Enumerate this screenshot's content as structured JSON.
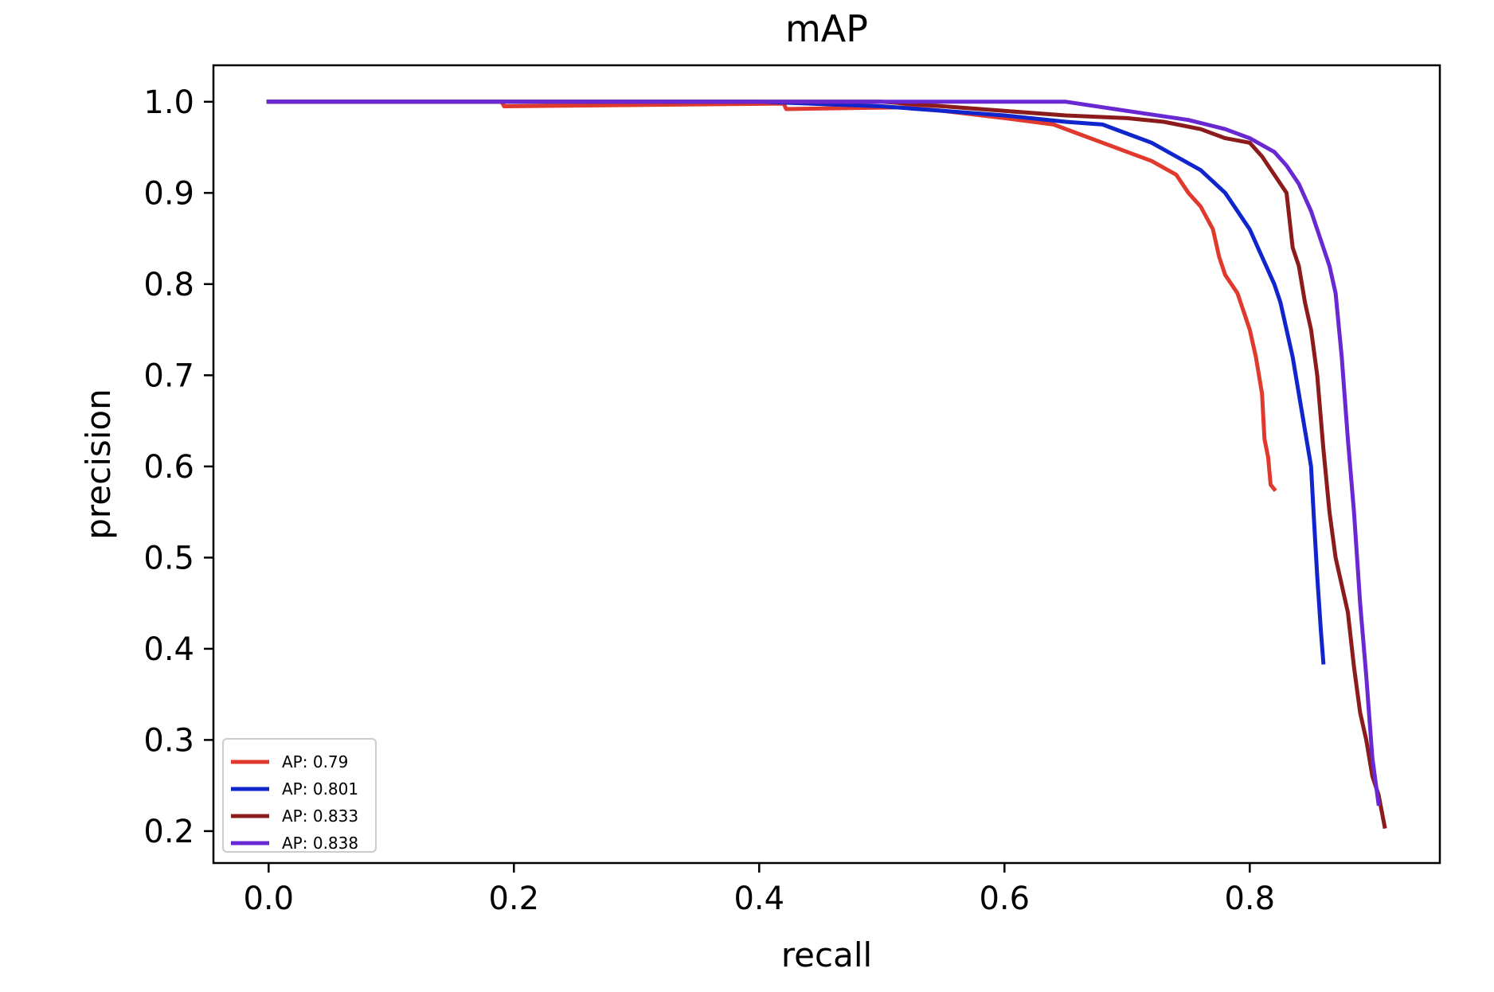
{
  "chart_data": {
    "type": "line",
    "title": "mAP",
    "xlabel": "recall",
    "ylabel": "precision",
    "xlim": [
      -0.045,
      0.955
    ],
    "ylim": [
      0.165,
      1.04
    ],
    "xticks": [
      0.0,
      0.2,
      0.4,
      0.6,
      0.8
    ],
    "xtick_labels": [
      "0.0",
      "0.2",
      "0.4",
      "0.6",
      "0.8"
    ],
    "yticks": [
      0.2,
      0.3,
      0.4,
      0.5,
      0.6,
      0.7,
      0.8,
      0.9,
      1.0
    ],
    "ytick_labels": [
      "0.2",
      "0.3",
      "0.4",
      "0.5",
      "0.6",
      "0.7",
      "0.8",
      "0.9",
      "1.0"
    ],
    "grid": false,
    "legend_position": "lower-left",
    "series": [
      {
        "name": "AP: 0.79",
        "color": "#e03a2f",
        "x": [
          0.0,
          0.19,
          0.192,
          0.42,
          0.422,
          0.52,
          0.55,
          0.6,
          0.64,
          0.66,
          0.68,
          0.7,
          0.72,
          0.74,
          0.75,
          0.76,
          0.77,
          0.775,
          0.78,
          0.79,
          0.795,
          0.8,
          0.805,
          0.81,
          0.812,
          0.815,
          0.817,
          0.82
        ],
        "y": [
          1.0,
          1.0,
          0.995,
          0.998,
          0.992,
          0.994,
          0.99,
          0.982,
          0.975,
          0.965,
          0.955,
          0.945,
          0.935,
          0.92,
          0.9,
          0.885,
          0.86,
          0.83,
          0.81,
          0.79,
          0.77,
          0.75,
          0.72,
          0.68,
          0.63,
          0.61,
          0.58,
          0.575
        ]
      },
      {
        "name": "AP: 0.801",
        "color": "#1025cc",
        "x": [
          0.0,
          0.4,
          0.5,
          0.55,
          0.6,
          0.65,
          0.68,
          0.7,
          0.72,
          0.74,
          0.76,
          0.78,
          0.79,
          0.8,
          0.81,
          0.82,
          0.825,
          0.83,
          0.835,
          0.84,
          0.845,
          0.85,
          0.852,
          0.855,
          0.858,
          0.86
        ],
        "y": [
          1.0,
          1.0,
          0.995,
          0.99,
          0.985,
          0.978,
          0.975,
          0.965,
          0.955,
          0.94,
          0.925,
          0.9,
          0.88,
          0.86,
          0.83,
          0.8,
          0.78,
          0.75,
          0.72,
          0.68,
          0.64,
          0.6,
          0.55,
          0.48,
          0.42,
          0.385
        ]
      },
      {
        "name": "AP: 0.833",
        "color": "#8c1b1b",
        "x": [
          0.0,
          0.5,
          0.55,
          0.6,
          0.65,
          0.7,
          0.73,
          0.76,
          0.78,
          0.8,
          0.81,
          0.82,
          0.83,
          0.835,
          0.84,
          0.845,
          0.85,
          0.855,
          0.86,
          0.865,
          0.87,
          0.875,
          0.88,
          0.885,
          0.89,
          0.895,
          0.9,
          0.905,
          0.91
        ],
        "y": [
          1.0,
          1.0,
          0.995,
          0.99,
          0.985,
          0.982,
          0.978,
          0.97,
          0.96,
          0.955,
          0.94,
          0.92,
          0.9,
          0.84,
          0.82,
          0.78,
          0.75,
          0.7,
          0.62,
          0.55,
          0.5,
          0.47,
          0.44,
          0.38,
          0.33,
          0.3,
          0.26,
          0.24,
          0.205
        ]
      },
      {
        "name": "AP: 0.838",
        "color": "#6a28d2",
        "x": [
          0.0,
          0.65,
          0.7,
          0.75,
          0.78,
          0.8,
          0.82,
          0.83,
          0.84,
          0.85,
          0.86,
          0.865,
          0.87,
          0.875,
          0.88,
          0.885,
          0.89,
          0.895,
          0.9,
          0.903,
          0.905
        ],
        "y": [
          1.0,
          1.0,
          0.99,
          0.98,
          0.97,
          0.96,
          0.945,
          0.93,
          0.91,
          0.88,
          0.84,
          0.82,
          0.79,
          0.72,
          0.63,
          0.55,
          0.45,
          0.37,
          0.28,
          0.25,
          0.23
        ]
      }
    ]
  }
}
